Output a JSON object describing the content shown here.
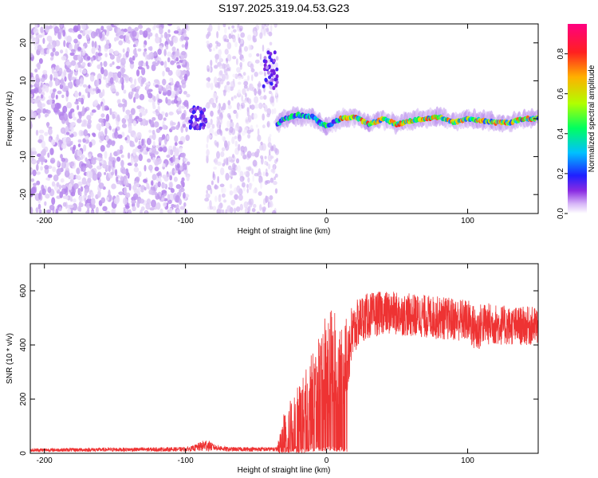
{
  "title": "S197.2025.319.04.53.G23",
  "chart_data": [
    {
      "type": "heatmap",
      "xlabel": "Height of straight line (km)",
      "ylabel": "Frequency (Hz)",
      "xlim": [
        -210,
        150
      ],
      "ylim": [
        -25,
        25
      ],
      "xticks": [
        -200,
        -100,
        0,
        100
      ],
      "yticks": [
        -20,
        -10,
        0,
        10,
        20
      ],
      "colorbar": {
        "label": "Normalized spectral amplitude",
        "range": [
          0.0,
          0.95
        ],
        "ticks": [
          0.0,
          0.2,
          0.4,
          0.6,
          0.8
        ],
        "colormap": [
          "#ffffff",
          "#c9a8f0",
          "#7a1fe0",
          "#2a20ff",
          "#00c8ff",
          "#00ff40",
          "#c8ff00",
          "#ffa000",
          "#ff2020",
          "#ff0080"
        ]
      },
      "regions": [
        {
          "x_range": [
            -210,
            -97
          ],
          "description_value": "broadband noise",
          "amplitude": 0.1
        },
        {
          "x_range": [
            -97,
            -87
          ],
          "freq_center": 0,
          "amplitude": 0.25
        },
        {
          "x_range": [
            -85,
            -35
          ],
          "amplitude": 0.08
        },
        {
          "x_range": [
            -35,
            150
          ],
          "freq_center": 0,
          "amplitude": 0.9
        }
      ],
      "signal_track": {
        "x": [
          -35,
          -30,
          -20,
          -10,
          -5,
          0,
          10,
          20,
          30,
          40,
          50,
          60,
          70,
          80,
          90,
          100,
          110,
          120,
          130,
          140,
          150
        ],
        "y": [
          -1.5,
          0,
          1,
          0.5,
          -1,
          -2,
          0,
          0.5,
          -1.5,
          0,
          -1.5,
          -0.5,
          0,
          0.5,
          -1,
          0,
          -0.5,
          -1,
          -1,
          0,
          0
        ]
      }
    },
    {
      "type": "line",
      "xlabel": "Height of straight line (km)",
      "ylabel": "SNR (10 * v/v)",
      "xlim": [
        -210,
        150
      ],
      "ylim": [
        0,
        700
      ],
      "xticks": [
        -200,
        -100,
        0,
        100
      ],
      "yticks": [
        0,
        200,
        400,
        600
      ],
      "color": "#ee3333",
      "envelope": {
        "x": [
          -210,
          -100,
          -95,
          -85,
          -80,
          -70,
          -35,
          -30,
          -25,
          -20,
          -15,
          -10,
          -5,
          0,
          5,
          10,
          15,
          20,
          25,
          40,
          60,
          80,
          100,
          107,
          110,
          130,
          150
        ],
        "mean": [
          12,
          15,
          18,
          30,
          22,
          15,
          15,
          60,
          80,
          110,
          150,
          200,
          250,
          320,
          330,
          300,
          380,
          460,
          500,
          520,
          510,
          500,
          490,
          450,
          480,
          470,
          470
        ],
        "spread": [
          8,
          10,
          12,
          30,
          15,
          10,
          10,
          140,
          150,
          180,
          200,
          220,
          260,
          280,
          260,
          180,
          200,
          120,
          110,
          100,
          100,
          100,
          100,
          110,
          100,
          90,
          90
        ]
      }
    }
  ]
}
